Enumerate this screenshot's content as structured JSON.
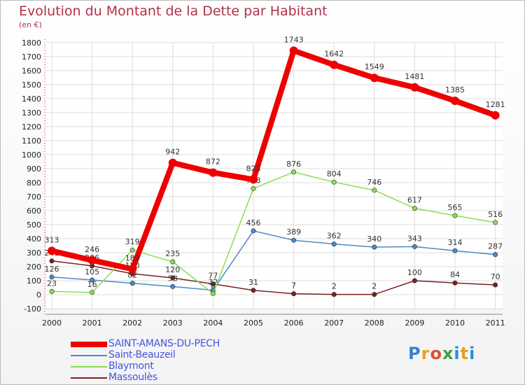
{
  "header": {
    "title": "Evolution du Montant de la Dette par Habitant",
    "unit": "(en €)"
  },
  "logo": {
    "text": "Proxiti"
  },
  "chart_data": {
    "type": "line",
    "title": "Evolution du Montant de la Dette par Habitant",
    "ylabel": "(en €)",
    "xlabel": "",
    "ylim": [
      -100,
      1800
    ],
    "yticks": [
      -100,
      0,
      100,
      200,
      300,
      400,
      500,
      600,
      700,
      800,
      900,
      1000,
      1100,
      1200,
      1300,
      1400,
      1500,
      1600,
      1700,
      1800
    ],
    "categories": [
      "2000",
      "2001",
      "2002",
      "2003",
      "2004",
      "2005",
      "2006",
      "2007",
      "2008",
      "2009",
      "2010",
      "2011"
    ],
    "grid": true,
    "legend": "bottom-left",
    "series": [
      {
        "name": "Massoulès",
        "color": "#7a2020",
        "values": [
          241,
          206,
          150,
          120,
          77,
          31,
          7,
          2,
          2,
          100,
          84,
          70
        ]
      },
      {
        "name": "Saint-Beauzeil",
        "color": "#4a8ac8",
        "values": [
          126,
          105,
          82,
          58,
          32,
          456,
          389,
          362,
          340,
          343,
          314,
          287
        ]
      },
      {
        "name": "Blaymont",
        "color": "#88dd55",
        "values": [
          23,
          16,
          319,
          235,
          8,
          758,
          876,
          804,
          746,
          617,
          565,
          516
        ]
      },
      {
        "name": "SAINT-AMANS-DU-PECH",
        "color": "#ee0000",
        "values": [
          313,
          246,
          183,
          942,
          872,
          823,
          1743,
          1642,
          1549,
          1481,
          1385,
          1281
        ]
      }
    ],
    "legend_order": [
      "SAINT-AMANS-DU-PECH",
      "Saint-Beauzeil",
      "Blaymont",
      "Massoulès"
    ]
  }
}
